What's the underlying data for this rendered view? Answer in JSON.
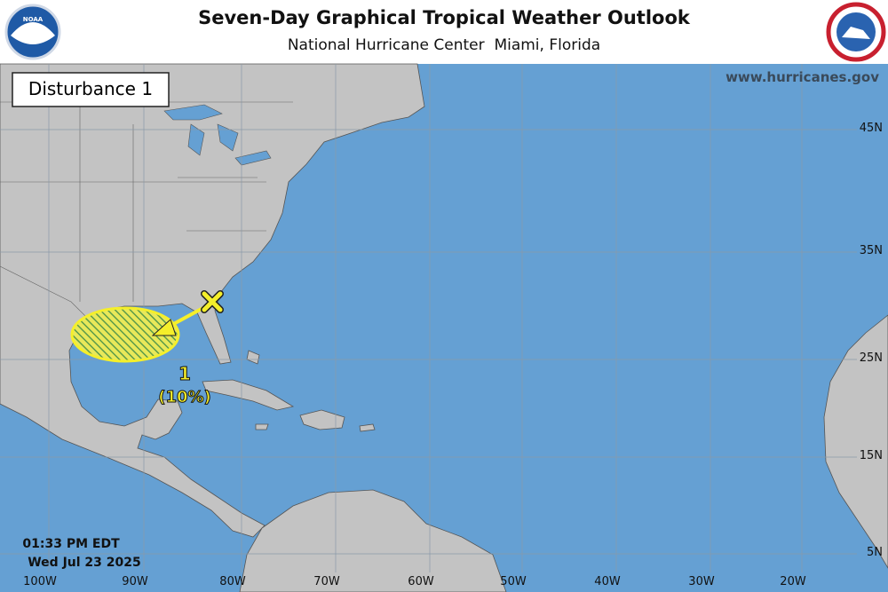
{
  "header": {
    "title": "Seven-Day Graphical Tropical Weather Outlook",
    "subtitle": "National Hurricane Center  Miami, Florida"
  },
  "website": "www.hurricanes.gov",
  "panel_label": "Disturbance 1",
  "timestamp": {
    "time": "01:33 PM EDT",
    "date": "Wed Jul 23 2025"
  },
  "longitude_labels": [
    "100W",
    "90W",
    "80W",
    "70W",
    "60W",
    "50W",
    "40W",
    "30W",
    "20W"
  ],
  "latitude_labels": [
    "45N",
    "35N",
    "25N",
    "15N",
    "5N"
  ],
  "disturbances": [
    {
      "number": "1",
      "chance": "(10%)"
    }
  ]
}
